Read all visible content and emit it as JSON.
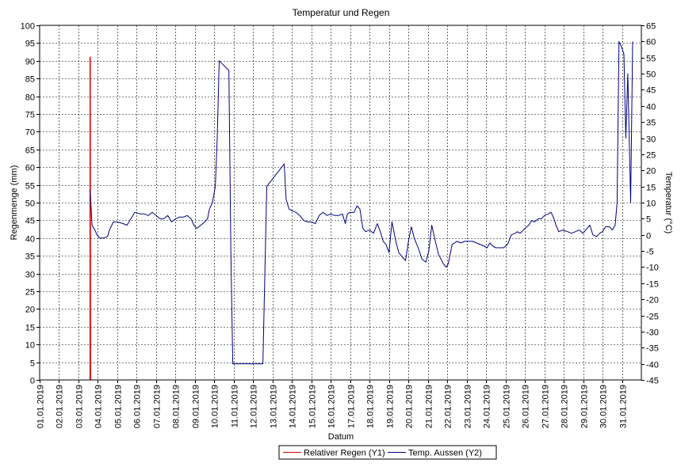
{
  "chart_data": {
    "type": "line",
    "title": "Temperatur und Regen",
    "xlabel": "Datum",
    "ylabel": "Regenmenge (mm)",
    "y2label": "Temperatur (°C)",
    "x_start": "01.01.2019",
    "x_end": "31.01.2019",
    "x_max_day": 32,
    "xticks": [
      "01.01.2019",
      "02.01.2019",
      "03.01.2019",
      "04.01.2019",
      "05.01.2019",
      "06.01.2019",
      "07.01.2019",
      "08.01.2019",
      "09.01.2019",
      "10.01.2019",
      "11.01.2019",
      "12.01.2019",
      "13.01.2019",
      "14.01.2019",
      "15.01.2019",
      "16.01.2019",
      "17.01.2019",
      "18.01.2019",
      "19.01.2019",
      "20.01.2019",
      "21.01.2019",
      "22.01.2019",
      "23.01.2019",
      "24.01.2019",
      "25.01.2019",
      "26.01.2019",
      "27.01.2019",
      "28.01.2019",
      "29.01.2019",
      "30.01.2019",
      "31.01.2019"
    ],
    "ylim": [
      0,
      100
    ],
    "y_step": 5,
    "y2lim": [
      -45,
      65
    ],
    "y2_step": 5,
    "grid": true,
    "legend": "bottom-center",
    "series": [
      {
        "name": "Relativer Regen (Y1)",
        "axis": "y1",
        "color": "#e00000",
        "points": [
          [
            3.6,
            0
          ],
          [
            3.6,
            91
          ],
          [
            3.62,
            0
          ]
        ]
      },
      {
        "name": "Temp. Aussen (Y2)",
        "axis": "y2",
        "color": "#000080",
        "points": [
          [
            3.6,
            14
          ],
          [
            3.7,
            3
          ],
          [
            3.85,
            1.5
          ],
          [
            3.95,
            0
          ],
          [
            4.1,
            -1
          ],
          [
            4.3,
            -1
          ],
          [
            4.5,
            -0.5
          ],
          [
            4.6,
            1.5
          ],
          [
            4.8,
            4
          ],
          [
            5.0,
            4
          ],
          [
            5.3,
            3.5
          ],
          [
            5.5,
            3
          ],
          [
            5.7,
            5
          ],
          [
            5.9,
            7
          ],
          [
            6.2,
            6.5
          ],
          [
            6.4,
            6.5
          ],
          [
            6.6,
            6
          ],
          [
            6.8,
            7
          ],
          [
            7.0,
            6
          ],
          [
            7.2,
            5
          ],
          [
            7.4,
            5
          ],
          [
            7.6,
            6
          ],
          [
            7.8,
            4
          ],
          [
            8.0,
            5
          ],
          [
            8.2,
            5.5
          ],
          [
            8.4,
            5.5
          ],
          [
            8.6,
            6
          ],
          [
            8.8,
            5
          ],
          [
            8.95,
            3
          ],
          [
            9.1,
            2
          ],
          [
            9.3,
            3
          ],
          [
            9.5,
            4
          ],
          [
            9.65,
            5
          ],
          [
            9.75,
            8
          ],
          [
            9.9,
            10
          ],
          [
            10.05,
            15
          ],
          [
            10.15,
            30
          ],
          [
            10.25,
            54
          ],
          [
            10.75,
            51
          ],
          [
            10.85,
            -5
          ],
          [
            10.95,
            -40
          ],
          [
            11.3,
            -40
          ],
          [
            11.6,
            -40
          ],
          [
            12.0,
            -40
          ],
          [
            12.3,
            -40
          ],
          [
            12.5,
            -40
          ],
          [
            12.7,
            15
          ],
          [
            13.6,
            22
          ],
          [
            13.7,
            11
          ],
          [
            13.85,
            8
          ],
          [
            14.0,
            7.5
          ],
          [
            14.2,
            7
          ],
          [
            14.4,
            6
          ],
          [
            14.6,
            4.5
          ],
          [
            14.8,
            4
          ],
          [
            15.0,
            4
          ],
          [
            15.2,
            3.5
          ],
          [
            15.4,
            6
          ],
          [
            15.6,
            7
          ],
          [
            15.8,
            6
          ],
          [
            16.0,
            6.5
          ],
          [
            16.2,
            6
          ],
          [
            16.4,
            6
          ],
          [
            16.6,
            6.5
          ],
          [
            16.75,
            3.5
          ],
          [
            16.85,
            6.5
          ],
          [
            17.0,
            7
          ],
          [
            17.2,
            7
          ],
          [
            17.35,
            9
          ],
          [
            17.5,
            8
          ],
          [
            17.65,
            2
          ],
          [
            17.8,
            1
          ],
          [
            18.0,
            1.5
          ],
          [
            18.2,
            0.5
          ],
          [
            18.4,
            3.5
          ],
          [
            18.55,
            1
          ],
          [
            18.7,
            -2
          ],
          [
            18.85,
            -3
          ],
          [
            19.0,
            -5.5
          ],
          [
            19.15,
            4
          ],
          [
            19.35,
            -2
          ],
          [
            19.5,
            -5.5
          ],
          [
            19.7,
            -7
          ],
          [
            19.85,
            -8
          ],
          [
            20.0,
            -2
          ],
          [
            20.15,
            2.5
          ],
          [
            20.3,
            -1
          ],
          [
            20.5,
            -4
          ],
          [
            20.7,
            -7.5
          ],
          [
            20.9,
            -8.5
          ],
          [
            21.05,
            -5
          ],
          [
            21.2,
            3
          ],
          [
            21.35,
            -1
          ],
          [
            21.55,
            -6
          ],
          [
            21.8,
            -9
          ],
          [
            21.95,
            -10
          ],
          [
            22.05,
            -9
          ],
          [
            22.25,
            -3
          ],
          [
            22.5,
            -2
          ],
          [
            22.7,
            -2.5
          ],
          [
            22.9,
            -2
          ],
          [
            23.1,
            -2
          ],
          [
            23.3,
            -2
          ],
          [
            23.5,
            -2.5
          ],
          [
            23.7,
            -3
          ],
          [
            23.9,
            -3.5
          ],
          [
            24.05,
            -4
          ],
          [
            24.2,
            -2.5
          ],
          [
            24.35,
            -3.5
          ],
          [
            24.5,
            -4
          ],
          [
            24.7,
            -4
          ],
          [
            24.9,
            -4
          ],
          [
            25.1,
            -3
          ],
          [
            25.3,
            0
          ],
          [
            25.5,
            0.5
          ],
          [
            25.6,
            1
          ],
          [
            25.75,
            0.5
          ],
          [
            26.0,
            2
          ],
          [
            26.2,
            3
          ],
          [
            26.35,
            4.5
          ],
          [
            26.5,
            4
          ],
          [
            26.7,
            5
          ],
          [
            26.85,
            5
          ],
          [
            27.0,
            6
          ],
          [
            27.2,
            6.5
          ],
          [
            27.35,
            7
          ],
          [
            27.5,
            5
          ],
          [
            27.6,
            3
          ],
          [
            27.75,
            1
          ],
          [
            27.95,
            1.5
          ],
          [
            28.2,
            1
          ],
          [
            28.4,
            0.5
          ],
          [
            28.6,
            1
          ],
          [
            28.8,
            1.5
          ],
          [
            29.0,
            0.5
          ],
          [
            29.2,
            2
          ],
          [
            29.35,
            3
          ],
          [
            29.5,
            0
          ],
          [
            29.7,
            -0.5
          ],
          [
            29.85,
            0.5
          ],
          [
            30.0,
            1
          ],
          [
            30.15,
            2.5
          ],
          [
            30.35,
            2.5
          ],
          [
            30.5,
            1.5
          ],
          [
            30.65,
            3
          ],
          [
            30.75,
            10
          ],
          [
            30.85,
            60
          ],
          [
            31.0,
            58
          ],
          [
            31.1,
            56
          ],
          [
            31.2,
            30
          ],
          [
            31.3,
            50
          ],
          [
            31.45,
            10
          ],
          [
            31.55,
            60
          ]
        ]
      }
    ]
  }
}
